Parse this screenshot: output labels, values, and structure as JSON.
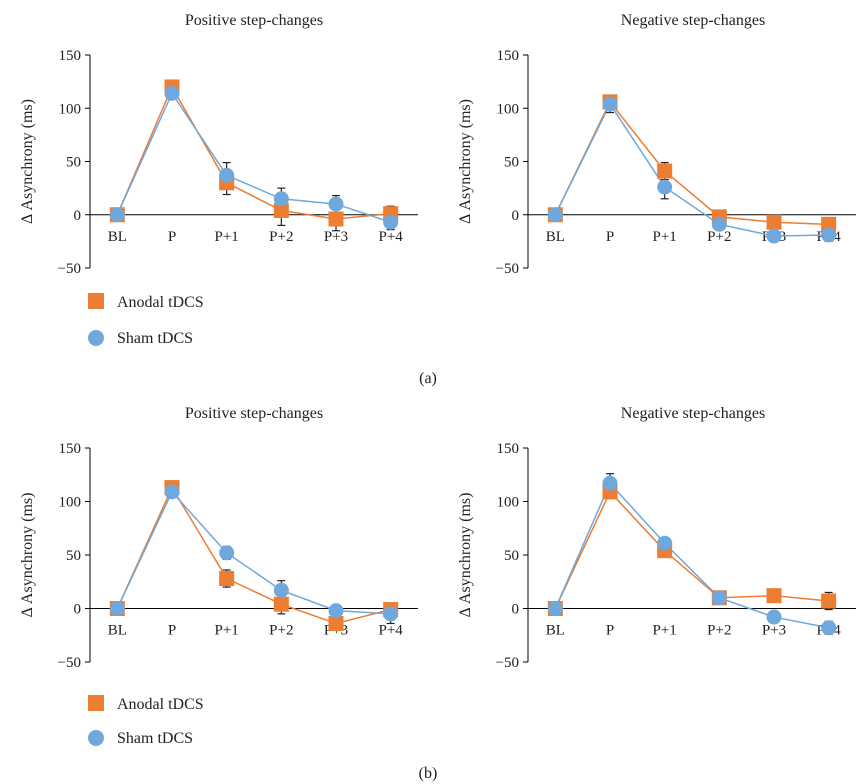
{
  "legend": {
    "anodal_label": "Anodal tDCS",
    "sham_label": "Sham tDCS"
  },
  "colors": {
    "anodal": "#ED7D31",
    "sham": "#6FA8DC",
    "axis": "#000000",
    "error": "#222222"
  },
  "panels": [
    {
      "label": "(a)"
    },
    {
      "label": "(b)"
    }
  ],
  "chart_data": [
    {
      "type": "line",
      "panel": "(a)",
      "title": "Positive step-changes",
      "xlabel": "",
      "ylabel": "Δ Asynchrony (ms)",
      "categories": [
        "BL",
        "P",
        "P+1",
        "P+2",
        "P+3",
        "P+4"
      ],
      "ylim": [
        -50,
        150
      ],
      "yticks": [
        -50,
        0,
        50,
        100,
        150
      ],
      "series": [
        {
          "name": "Anodal tDCS",
          "values": [
            0,
            120,
            30,
            4,
            -4,
            1
          ],
          "errors": [
            0,
            4,
            11,
            14,
            11,
            7
          ]
        },
        {
          "name": "Sham tDCS",
          "values": [
            0,
            114,
            37,
            15,
            10,
            -7
          ],
          "errors": [
            0,
            4,
            12,
            10,
            8,
            7
          ]
        }
      ]
    },
    {
      "type": "line",
      "panel": "(a)",
      "title": "Negative step-changes",
      "xlabel": "",
      "ylabel": "Δ Asynchrony (ms)",
      "categories": [
        "BL",
        "P",
        "P+1",
        "P+2",
        "P+3",
        "P+4"
      ],
      "ylim": [
        -50,
        150
      ],
      "yticks": [
        -50,
        0,
        50,
        100,
        150
      ],
      "series": [
        {
          "name": "Anodal tDCS",
          "values": [
            0,
            106,
            41,
            -2,
            -7,
            -9
          ],
          "errors": [
            0,
            5,
            8,
            4,
            4,
            4
          ]
        },
        {
          "name": "Sham tDCS",
          "values": [
            0,
            104,
            26,
            -9,
            -20,
            -19
          ],
          "errors": [
            0,
            8,
            11,
            4,
            5,
            6
          ]
        }
      ]
    },
    {
      "type": "line",
      "panel": "(b)",
      "title": "Positive step-changes",
      "xlabel": "",
      "ylabel": "Δ Asynchrony (ms)",
      "categories": [
        "BL",
        "P",
        "P+1",
        "P+2",
        "P+3",
        "P+4"
      ],
      "ylim": [
        -50,
        150
      ],
      "yticks": [
        -50,
        0,
        50,
        100,
        150
      ],
      "series": [
        {
          "name": "Anodal tDCS",
          "values": [
            0,
            113,
            28,
            4,
            -14,
            -1
          ],
          "errors": [
            0,
            3,
            8,
            9,
            4,
            5
          ]
        },
        {
          "name": "Sham tDCS",
          "values": [
            0,
            109,
            52,
            17,
            -2,
            -5
          ],
          "errors": [
            0,
            4,
            6,
            9,
            3,
            9
          ]
        }
      ]
    },
    {
      "type": "line",
      "panel": "(b)",
      "title": "Negative step-changes",
      "xlabel": "",
      "ylabel": "Δ Asynchrony (ms)",
      "categories": [
        "BL",
        "P",
        "P+1",
        "P+2",
        "P+3",
        "P+4"
      ],
      "ylim": [
        -50,
        150
      ],
      "yticks": [
        -50,
        0,
        50,
        100,
        150
      ],
      "series": [
        {
          "name": "Anodal tDCS",
          "values": [
            0,
            109,
            54,
            10,
            12,
            7
          ],
          "errors": [
            0,
            4,
            5,
            4,
            3,
            8
          ]
        },
        {
          "name": "Sham tDCS",
          "values": [
            0,
            117,
            61,
            10,
            -8,
            -18
          ],
          "errors": [
            0,
            9,
            4,
            4,
            3,
            6
          ]
        }
      ]
    }
  ]
}
